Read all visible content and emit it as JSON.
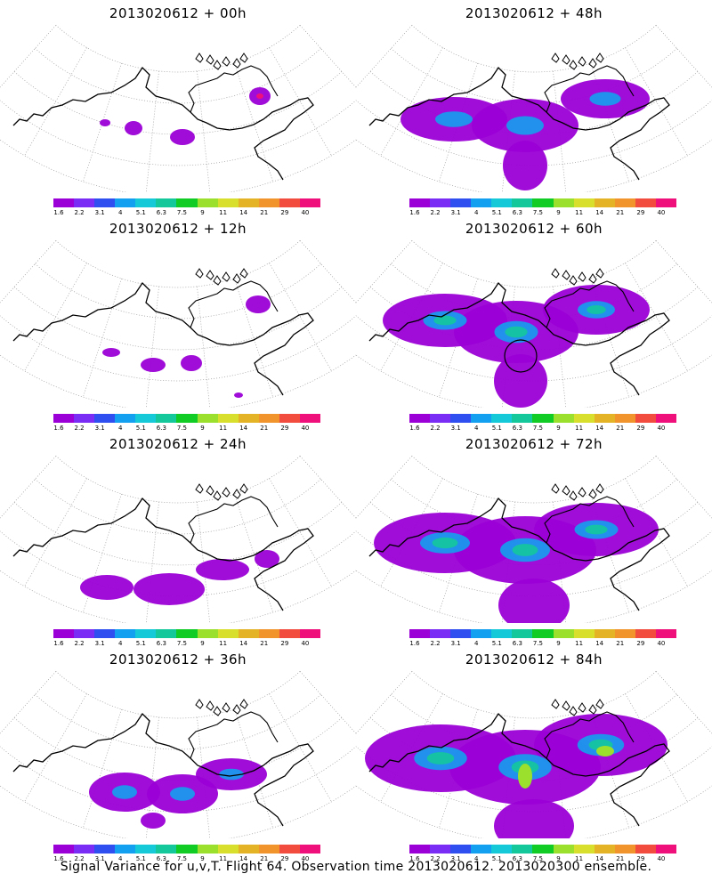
{
  "caption": "Signal Variance for u,v,T. Flight 64. Observation time 2013020612. 2013020300 ensemble.",
  "colorbar": {
    "ticks": [
      "1.6",
      "2.2",
      "3.1",
      "4",
      "5.1",
      "6.3",
      "7.5",
      "9",
      "11",
      "14",
      "21",
      "29",
      "40"
    ],
    "colors": [
      "#9b00d6",
      "#7a2ef5",
      "#2f4ff0",
      "#14a0f0",
      "#15c9d8",
      "#14c89b",
      "#12cc26",
      "#9be02c",
      "#d8df2c",
      "#e5b426",
      "#f0942b",
      "#f24c3e",
      "#f0107c"
    ]
  },
  "panels": [
    {
      "title": "2013020612 + 00h",
      "level": 0
    },
    {
      "title": "2013020612 + 48h",
      "level": 4
    },
    {
      "title": "2013020612 + 12h",
      "level": 1
    },
    {
      "title": "2013020612 + 60h",
      "level": 5
    },
    {
      "title": "2013020612 + 24h",
      "level": 2
    },
    {
      "title": "2013020612 + 72h",
      "level": 6
    },
    {
      "title": "2013020612 + 36h",
      "level": 3
    },
    {
      "title": "2013020612 + 84h",
      "level": 7
    }
  ]
}
